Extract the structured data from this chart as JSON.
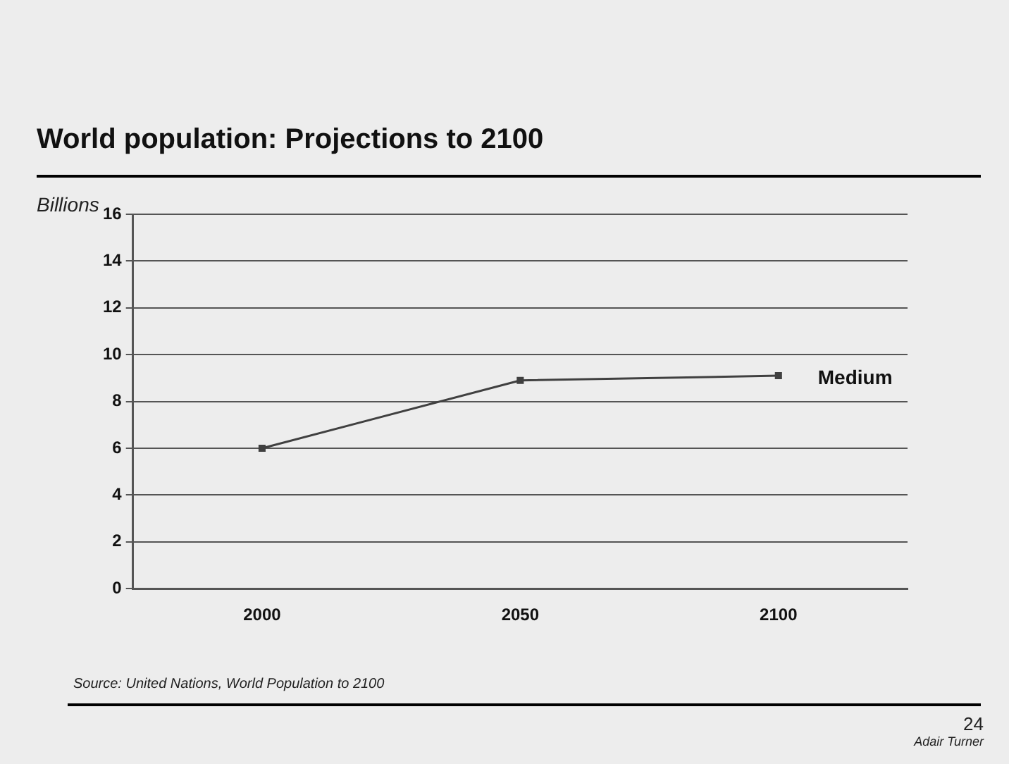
{
  "chart_data": {
    "type": "line",
    "title": "World population: Projections to 2100",
    "ylabel": "Billions",
    "categories": [
      "2000",
      "2050",
      "2100"
    ],
    "series": [
      {
        "name": "Medium",
        "color": "#404040",
        "values": [
          6.0,
          8.9,
          9.1
        ]
      }
    ],
    "ylim": [
      0,
      16
    ],
    "yticks": [
      0,
      2,
      4,
      6,
      8,
      10,
      12,
      14,
      16
    ],
    "grid": "y",
    "legend": false,
    "marker": "square",
    "line_style": "solid",
    "annotations": [
      "Source: United Nations, World Population to 2100",
      "24",
      "Adair Turner"
    ]
  }
}
